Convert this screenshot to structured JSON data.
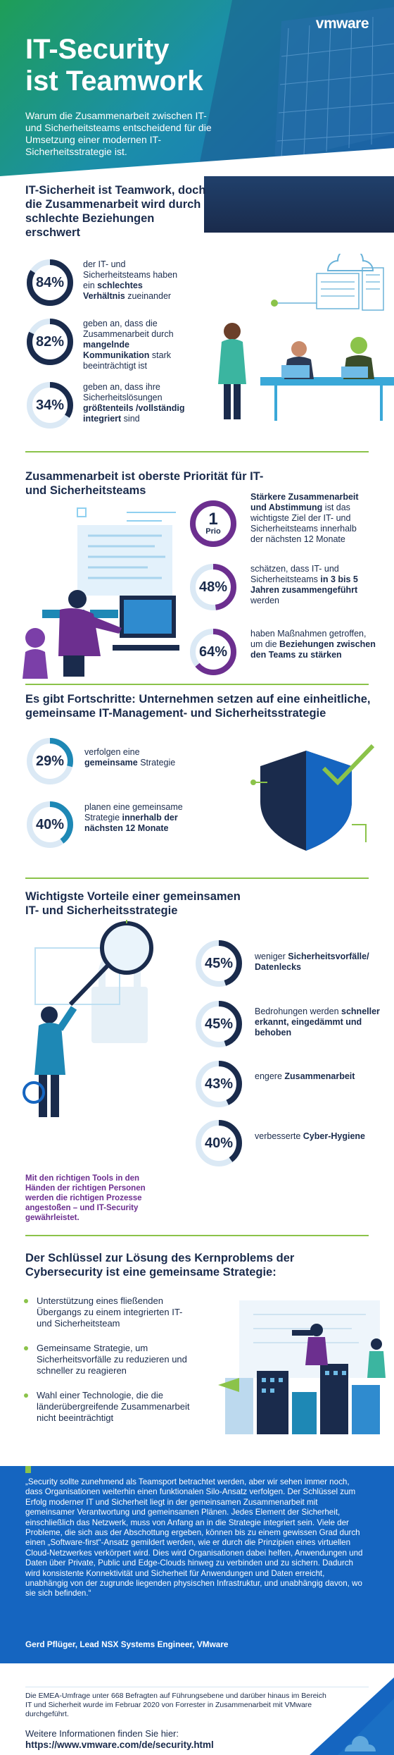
{
  "header": {
    "brand": "vmware",
    "title_line1": "IT-Security",
    "title_line2": "ist Teamwork",
    "intro": "Warum die Zusammenarbeit zwischen IT- und Sicherheitsteams entscheidend für die Umsetzung einer modernen IT-Sicherheitsstrategie ist."
  },
  "section1": {
    "heading": "IT-Sicherheit ist Teamwork, doch die Zusammenarbeit wird durch schlechte Beziehungen erschwert",
    "stats": [
      {
        "value": "84%",
        "pct": 84,
        "text_a": "der IT- und Sicherheitsteams haben ein ",
        "text_b": "schlechtes Verhältnis",
        "text_c": " zueinander"
      },
      {
        "value": "82%",
        "pct": 82,
        "text_a": "geben an, dass die Zusammenarbeit durch ",
        "text_b": "mangelnde Kommunikation",
        "text_c": " stark beeinträchtigt ist"
      },
      {
        "value": "34%",
        "pct": 34,
        "text_a": "geben an, dass ihre Sicherheitslösungen ",
        "text_b": "größtenteils /vollständig integriert",
        "text_c": " sind"
      }
    ]
  },
  "section2": {
    "heading": "Zusammenarbeit ist oberste Priorität für IT- und Sicherheitsteams",
    "prio_value": "1",
    "prio_label": "Prio",
    "stats": [
      {
        "text_a": "",
        "text_b": "Stärkere Zusammenarbeit und Abstimmung",
        "text_c": " ist das wichtigste Ziel der IT- und Sicherheitsteams innerhalb der nächsten 12 Monate"
      },
      {
        "value": "48%",
        "pct": 48,
        "text_a": "schätzen, dass IT- und Sicherheitsteams ",
        "text_b": "in 3 bis 5 Jahren zusammengeführt",
        "text_c": " werden"
      },
      {
        "value": "64%",
        "pct": 64,
        "text_a": "haben Maßnahmen getroffen, um die ",
        "text_b": "Beziehungen zwischen den Teams zu stärken",
        "text_c": ""
      }
    ]
  },
  "section3": {
    "heading": "Es gibt Fortschritte: Unternehmen setzen auf eine einheitliche, gemeinsame IT-Management- und Sicherheitsstrategie",
    "stats": [
      {
        "value": "29%",
        "pct": 29,
        "text_a": "verfolgen eine ",
        "text_b": "gemeinsame",
        "text_c": " Strategie"
      },
      {
        "value": "40%",
        "pct": 40,
        "text_a": "planen eine gemeinsame Strategie ",
        "text_b": "innerhalb der nächsten 12 Monate",
        "text_c": ""
      }
    ]
  },
  "section4": {
    "heading": "Wichtigste Vorteile einer gemeinsamen IT- und Sicherheitsstrategie",
    "caption": "Mit den richtigen Tools in den Händen der richtigen Personen werden die richtigen Prozesse angestoßen – und IT-Security gewährleistet.",
    "stats": [
      {
        "value": "45%",
        "pct": 45,
        "text_a": "weniger ",
        "text_b": "Sicherheitsvorfälle/ Datenlecks",
        "text_c": ""
      },
      {
        "value": "45%",
        "pct": 45,
        "text_a": "Bedrohungen werden ",
        "text_b": "schneller erkannt, eingedämmt und behoben",
        "text_c": ""
      },
      {
        "value": "43%",
        "pct": 43,
        "text_a": "engere ",
        "text_b": "Zusammenarbeit",
        "text_c": ""
      },
      {
        "value": "40%",
        "pct": 40,
        "text_a": "verbesserte ",
        "text_b": "Cyber-Hygiene",
        "text_c": ""
      }
    ]
  },
  "section5": {
    "heading": "Der Schlüssel zur Lösung des Kernproblems der Cybersecurity ist eine gemeinsame Strategie:",
    "bullets": [
      "Unterstützung eines fließenden Übergangs zu einem integrierten IT- und Sicherheitsteam",
      "Gemeinsame Strategie, um Sicherheitsvorfälle zu reduzieren und schneller zu reagieren",
      "Wahl einer Technologie, die die länderübergreifende Zusammenarbeit nicht beeinträchtigt"
    ]
  },
  "quote": {
    "text": "„Security sollte zunehmend als Teamsport betrachtet werden, aber wir sehen immer noch, dass Organisationen weiterhin einen funktionalen Silo-Ansatz verfolgen. Der Schlüssel zum Erfolg moderner IT und Sicherheit liegt in der gemeinsamen Zusammenarbeit mit gemeinsamer Verantwortung und gemeinsamen Plänen. Jedes Element der Sicherheit, einschließlich das Netzwerk, muss von Anfang an in die Strategie integriert sein. Viele der Probleme, die sich aus der Abschottung ergeben, können bis zu einem gewissen Grad durch einen „Software-first“-Ansatz gemildert werden, wie er durch die Prinzipien eines virtuellen Cloud-Netzwerkes verkörpert wird. Dies wird Organisationen dabei helfen, Anwendungen und Daten über Private, Public und Edge-Clouds hinweg zu verbinden und zu sichern. Dadurch wird konsistente Konnektivität und Sicherheit für Anwendungen und Daten erreicht, unabhängig von der zugrunde liegenden physischen Infrastruktur, und unabhängig davon, wo sie sich befinden.“",
    "author": "Gerd Pflüger, Lead NSX Systems Engineer, VMware"
  },
  "footer": {
    "note": "Die EMEA-Umfrage unter 668 Befragten auf Führungsebene und darüber hinaus im Bereich IT und Sicherheit wurde im Februar 2020 von Forrester in Zusammenarbeit mit VMware durchgeführt.",
    "more_label": "Weitere Informationen finden Sie hier:",
    "link": "https://www.vmware.com/de/security.html"
  },
  "colors": {
    "navy": "#1a2b4c",
    "green": "#8bc34a",
    "blue": "#1565c0",
    "purple": "#7b3fa8",
    "teal": "#1e88b5"
  }
}
